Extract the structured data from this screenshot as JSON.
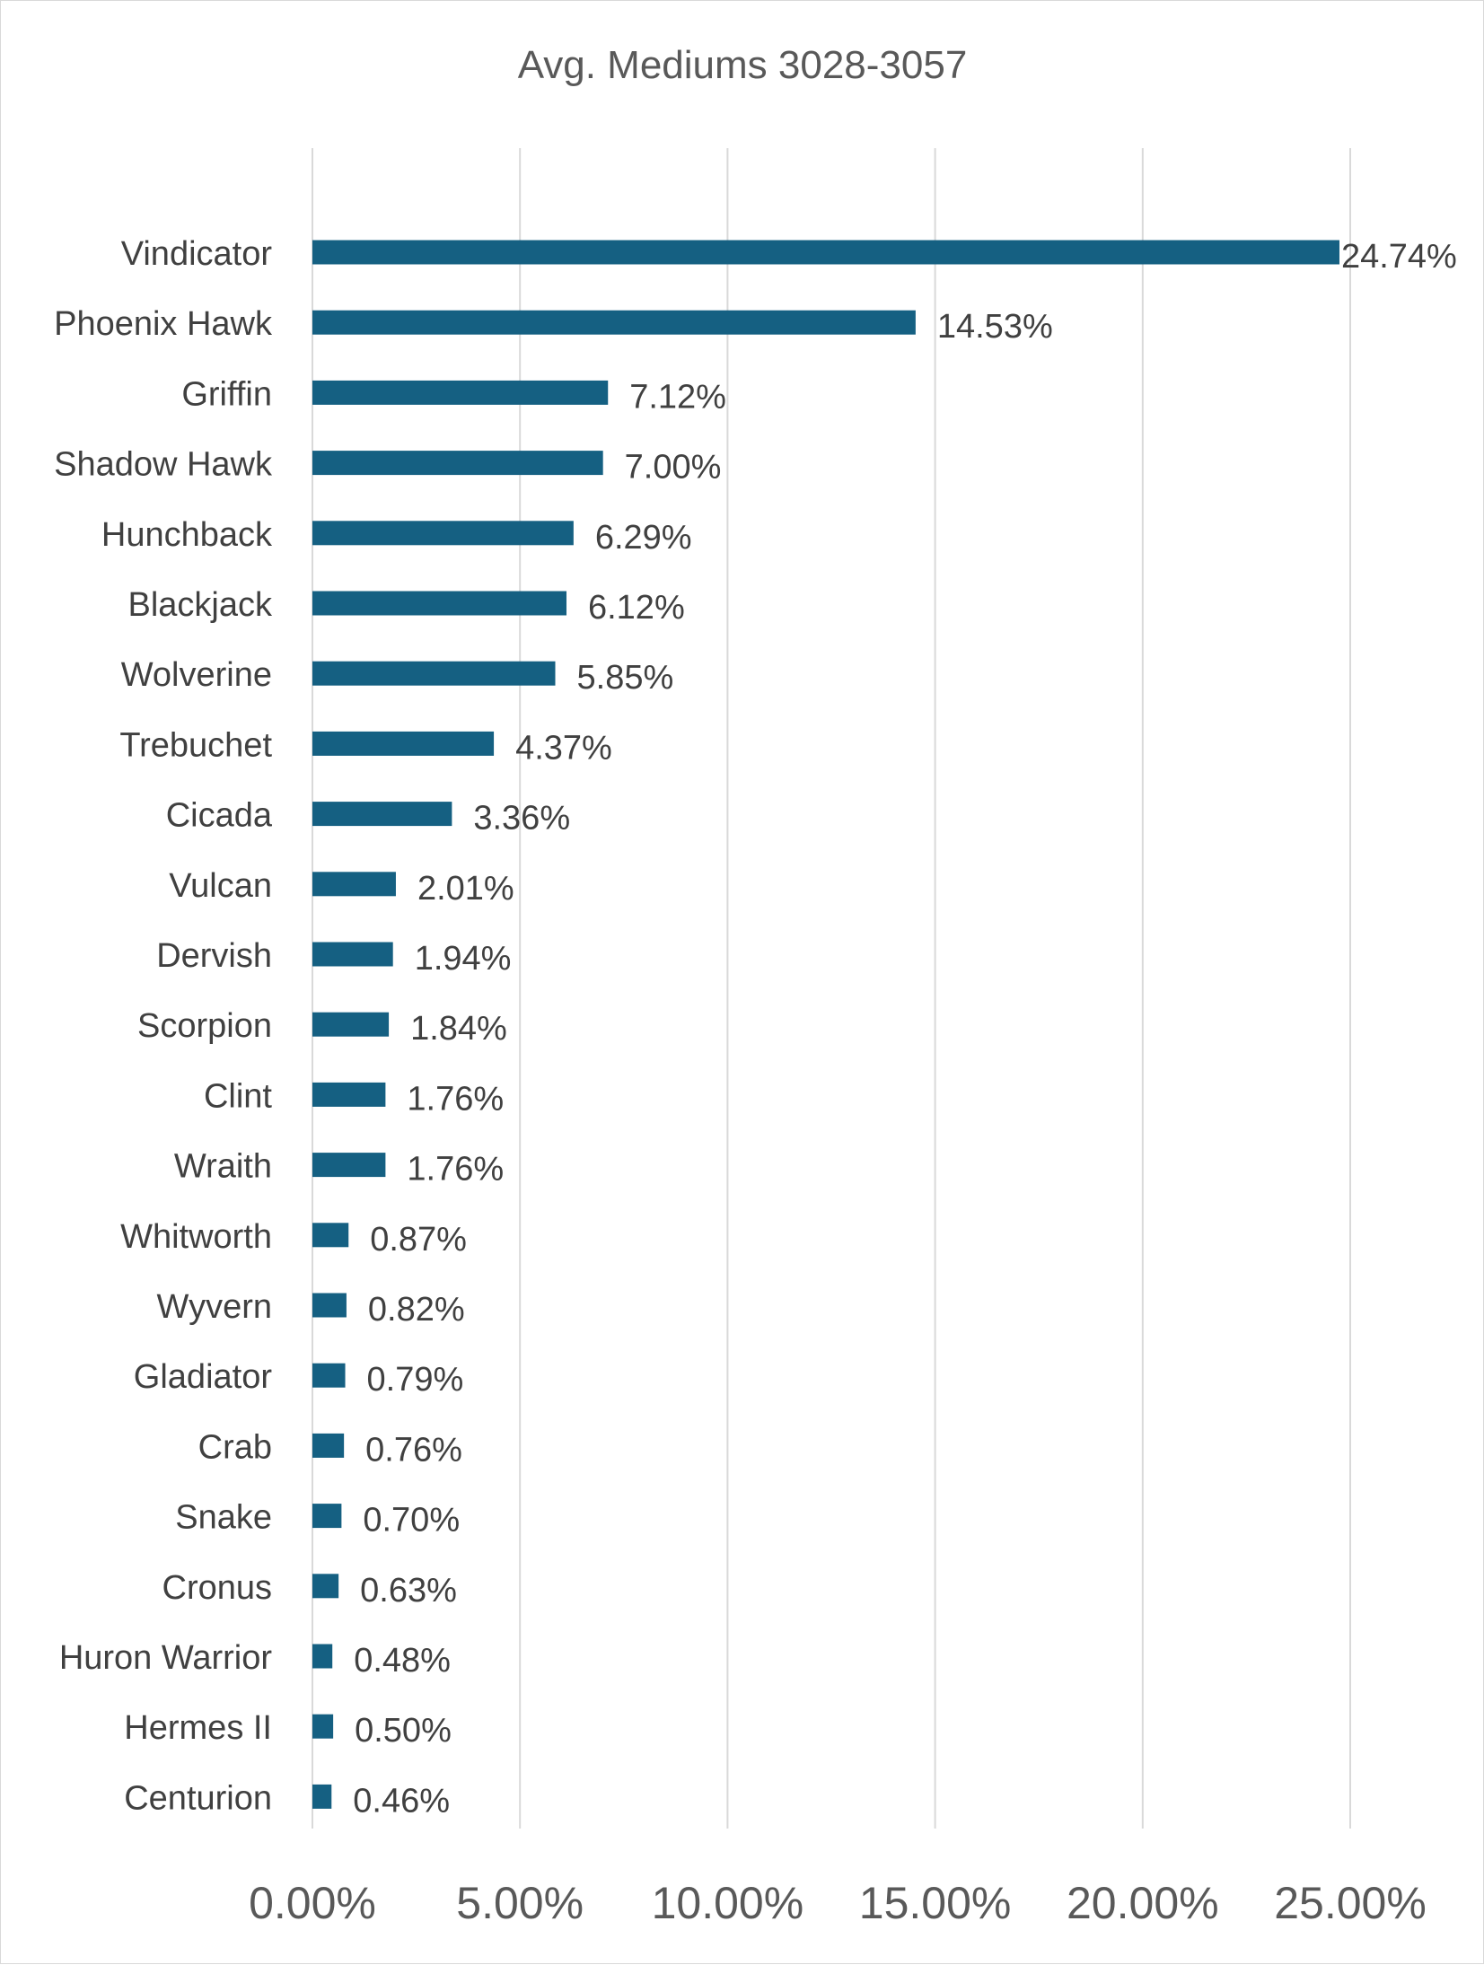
{
  "chart_data": {
    "type": "bar",
    "orientation": "horizontal",
    "title": "Avg. Mediums 3028-3057",
    "categories": [
      "Vindicator",
      "Phoenix Hawk",
      "Griffin",
      "Shadow Hawk",
      "Hunchback",
      "Blackjack",
      "Wolverine",
      "Trebuchet",
      "Cicada",
      "Vulcan",
      "Dervish",
      "Scorpion",
      "Clint",
      "Wraith",
      "Whitworth",
      "Wyvern",
      "Gladiator",
      "Crab",
      "Snake",
      "Cronus",
      "Huron Warrior",
      "Hermes II",
      "Centurion"
    ],
    "values": [
      24.74,
      14.53,
      7.12,
      7.0,
      6.29,
      6.12,
      5.85,
      4.37,
      3.36,
      2.01,
      1.94,
      1.84,
      1.76,
      1.76,
      0.87,
      0.82,
      0.79,
      0.76,
      0.7,
      0.63,
      0.48,
      0.5,
      0.46
    ],
    "data_labels": [
      "24.74%",
      "14.53%",
      "7.12%",
      "7.00%",
      "6.29%",
      "6.12%",
      "5.85%",
      "4.37%",
      "3.36%",
      "2.01%",
      "1.94%",
      "1.84%",
      "1.76%",
      "1.76%",
      "0.87%",
      "0.82%",
      "0.79%",
      "0.76%",
      "0.70%",
      "0.63%",
      "0.48%",
      "0.50%",
      "0.46%"
    ],
    "x_ticks": [
      "0.00%",
      "5.00%",
      "10.00%",
      "15.00%",
      "20.00%",
      "25.00%"
    ],
    "xlim": [
      0,
      25
    ],
    "grid": "vertical",
    "bar_color": "#156082",
    "gridline_color": "#d9d9d9",
    "xlabel": "",
    "ylabel": ""
  }
}
